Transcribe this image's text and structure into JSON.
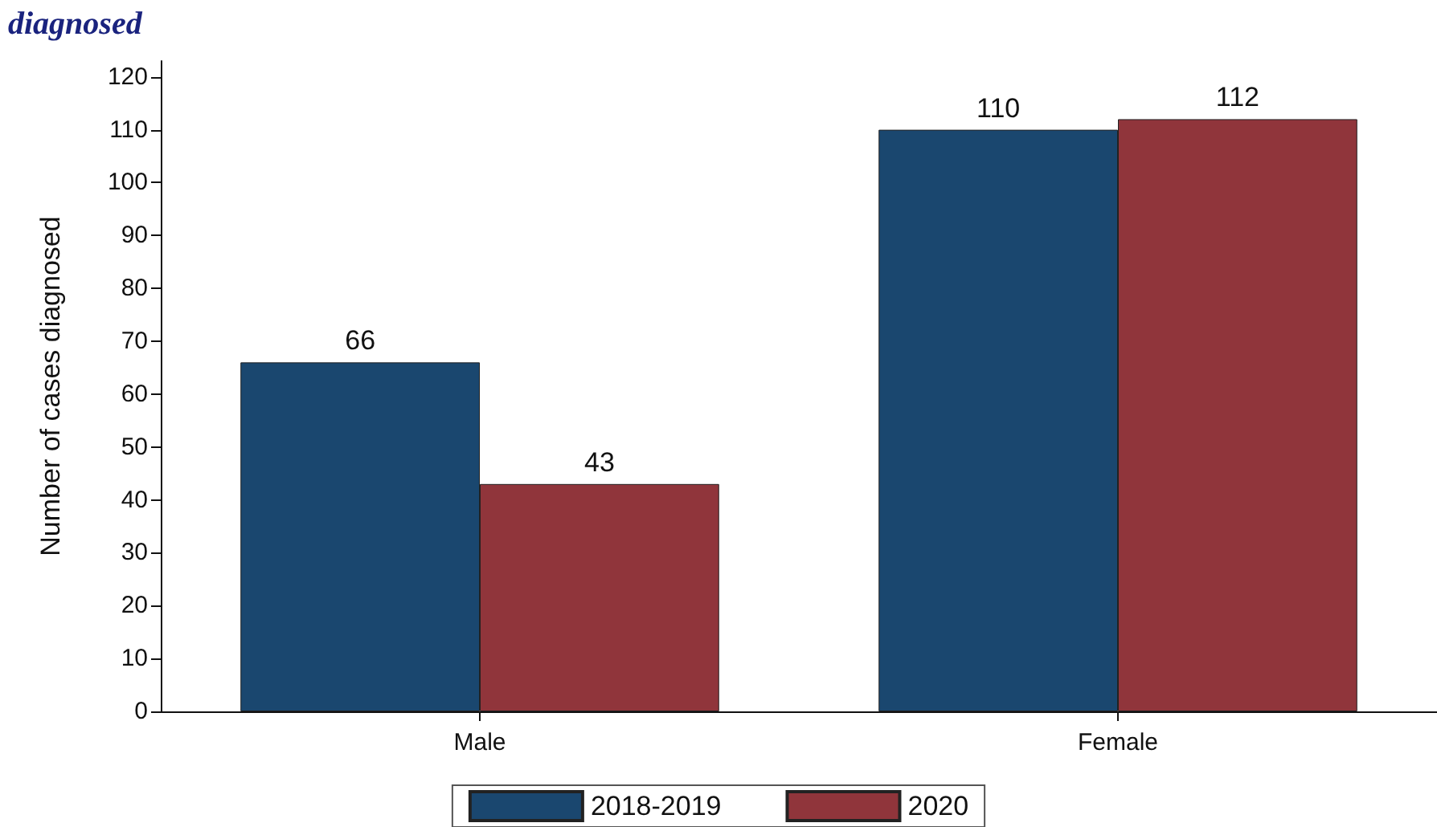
{
  "chart_data": {
    "type": "bar",
    "title": "diagnosed",
    "ylabel": "Number of cases diagnosed",
    "categories": [
      "Male",
      "Female"
    ],
    "series": [
      {
        "name": "2018-2019",
        "color": "#1a476f",
        "values": [
          66,
          110
        ]
      },
      {
        "name": "2020",
        "color": "#90353b",
        "values": [
          43,
          112
        ]
      }
    ],
    "ylim": [
      0,
      123
    ],
    "yticks": [
      0,
      10,
      20,
      30,
      40,
      50,
      60,
      70,
      80,
      90,
      100,
      110,
      120
    ],
    "grid": false,
    "legend": "bottom",
    "data_labels": true
  }
}
